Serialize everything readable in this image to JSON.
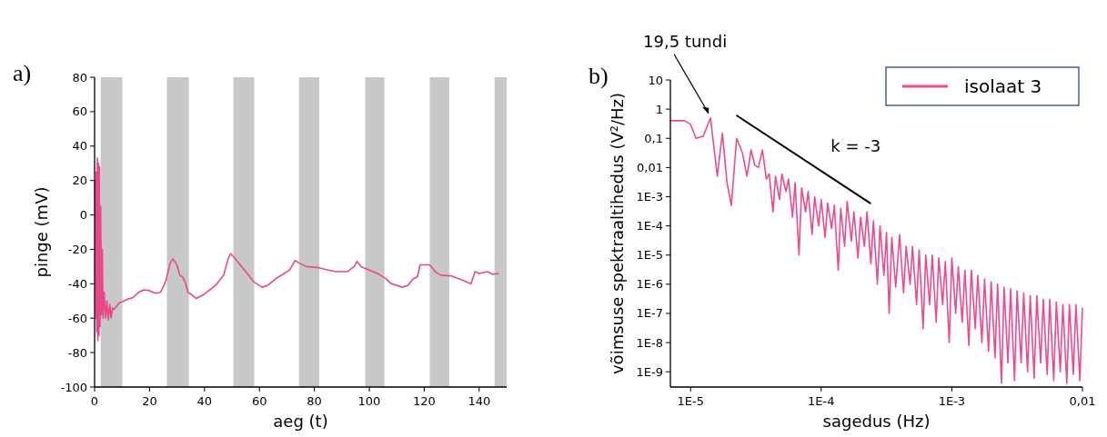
{
  "chart_data": [
    {
      "type": "line",
      "title": "a)",
      "xlabel": "aeg (t)",
      "ylabel": "pinge (mV)",
      "xlim": [
        0,
        150
      ],
      "ylim": [
        -100,
        80
      ],
      "xticks": [
        0,
        20,
        40,
        60,
        80,
        100,
        120,
        140
      ],
      "yticks": [
        -100,
        -80,
        -60,
        -40,
        -20,
        0,
        20,
        40,
        60,
        80
      ],
      "grid": false,
      "legend": false,
      "bands": [
        {
          "axis": "x",
          "from": 2.2,
          "to": 10.1,
          "color": "#c8c8c8"
        },
        {
          "axis": "x",
          "from": 26.3,
          "to": 34.3,
          "color": "#c8c8c8"
        },
        {
          "axis": "x",
          "from": 50.5,
          "to": 58.1,
          "color": "#c8c8c8"
        },
        {
          "axis": "x",
          "from": 74.4,
          "to": 81.8,
          "color": "#c8c8c8"
        },
        {
          "axis": "x",
          "from": 98.5,
          "to": 105.5,
          "color": "#c8c8c8"
        },
        {
          "axis": "x",
          "from": 122,
          "to": 129.1,
          "color": "#c8c8c8"
        },
        {
          "axis": "x",
          "from": 145.6,
          "to": 150,
          "color": "#c8c8c8"
        }
      ],
      "series": [
        {
          "color": "#e8488a",
          "x": [
            0.2,
            0.4,
            0.6,
            0.8,
            1.0,
            1.2,
            1.4,
            1.6,
            1.8,
            2.0,
            2.2,
            2.5,
            2.8,
            3.1,
            3.5,
            4,
            4.5,
            5,
            5.5,
            6,
            6.5,
            7,
            8,
            9,
            10,
            12,
            14,
            16,
            18,
            20,
            22,
            24,
            26,
            27.5,
            28.5,
            30,
            31,
            32,
            33,
            34,
            35,
            37,
            40,
            44,
            47,
            48.5,
            49.5,
            51,
            53,
            56,
            58,
            61,
            63,
            66,
            69,
            71,
            73,
            74.5,
            77,
            81,
            85,
            88,
            92,
            94.5,
            95.5,
            97,
            100,
            103,
            106,
            108,
            112,
            114,
            116,
            117.5,
            118.5,
            120,
            122,
            124,
            126,
            130,
            134,
            137,
            138.5,
            140,
            143,
            145,
            147
          ],
          "values": [
            20,
            -60,
            25,
            -68,
            33,
            -73,
            30,
            -70,
            28,
            -65,
            5,
            -58,
            -20,
            -60,
            -45,
            -60,
            -50,
            -61,
            -52,
            -60,
            -54,
            -55,
            -53,
            -51,
            -50.5,
            -49,
            -48,
            -45,
            -43.5,
            -44,
            -45.5,
            -45,
            -38,
            -28,
            -25.5,
            -29,
            -35,
            -36,
            -39,
            -45,
            -46,
            -48.5,
            -46,
            -41,
            -35,
            -26,
            -22.5,
            -25,
            -29,
            -35,
            -39,
            -42,
            -41,
            -37,
            -34,
            -32,
            -26.5,
            -28,
            -30,
            -30.5,
            -32,
            -33,
            -33,
            -30,
            -27,
            -30,
            -32,
            -34,
            -37,
            -40,
            -42,
            -41,
            -37,
            -36,
            -29,
            -29,
            -29,
            -33,
            -35,
            -35.5,
            -38,
            -40,
            -33,
            -34,
            -33,
            -34.5,
            -34
          ]
        }
      ]
    },
    {
      "type": "line",
      "title": "b)",
      "xlabel": "sagedus (Hz)",
      "ylabel": "võimsuse spektraaltihedus (V²/Hz)",
      "log": "xy",
      "xlim": [
        7e-06,
        0.01
      ],
      "ylim": [
        3e-10,
        10
      ],
      "grid": false,
      "legend": "top right",
      "xticks": [
        {
          "value": 1e-05,
          "label": "1E-5"
        },
        {
          "value": 0.0001,
          "label": "1E-4"
        },
        {
          "value": 0.001,
          "label": "1E-3"
        },
        {
          "value": 0.01,
          "label": "0,01"
        }
      ],
      "yticks": [
        {
          "value": 1e-09,
          "label": "1E-9"
        },
        {
          "value": 1e-08,
          "label": "1E-8"
        },
        {
          "value": 1e-07,
          "label": "1E-7"
        },
        {
          "value": 1e-06,
          "label": "1E-6"
        },
        {
          "value": 1e-05,
          "label": "1E-5"
        },
        {
          "value": 0.0001,
          "label": "1E-4"
        },
        {
          "value": 0.001,
          "label": "1E-3"
        },
        {
          "value": 0.01,
          "label": "0,01"
        },
        {
          "value": 0.1,
          "label": "0,1"
        },
        {
          "value": 1,
          "label": "1"
        },
        {
          "value": 10,
          "label": "10"
        }
      ],
      "annotations": [
        {
          "text": "19,5 tundi",
          "x": 1.42e-05,
          "y": 0.5
        },
        "k = -3"
      ],
      "series": [
        {
          "name": "isolaat 3",
          "color": "#ee4a8c",
          "x": [
            7e-06,
            9e-06,
            1e-05,
            1.1e-05,
            1.25e-05,
            1.42e-05,
            1.6e-05,
            1.75e-05,
            1.9e-05,
            2.05e-05,
            2.25e-05,
            2.5e-05,
            2.7e-05,
            2.9e-05,
            3.1e-05,
            3.3e-05,
            3.55e-05,
            3.8e-05,
            4e-05,
            4.27e-05,
            4.47e-05,
            4.79e-05,
            5e-05,
            5.37e-05,
            5.62e-05,
            6.03e-05,
            6.31e-05,
            6.76e-05,
            7.08e-05,
            7.59e-05,
            7.94e-05,
            8.51e-05,
            8.91e-05,
            9.55e-05,
            0.0001,
            0.000107,
            0.000112,
            0.00012,
            0.000126,
            0.000135,
            0.000141,
            0.000151,
            0.000158,
            0.00017,
            0.000178,
            0.000191,
            0.0002,
            0.000214,
            0.000224,
            0.00024,
            0.000251,
            0.000269,
            0.000282,
            0.000302,
            0.000316,
            0.000331,
            0.000347,
            0.000372,
            0.000398,
            0.000427,
            0.000447,
            0.000479,
            0.0005,
            0.000537,
            0.000562,
            0.000603,
            0.000631,
            0.000676,
            0.000708,
            0.000759,
            0.000794,
            0.000851,
            0.000891,
            0.000955,
            0.001,
            0.00107,
            0.00112,
            0.0012,
            0.00126,
            0.00135,
            0.00141,
            0.00151,
            0.00158,
            0.0017,
            0.00178,
            0.00191,
            0.002,
            0.00214,
            0.00224,
            0.0024,
            0.00251,
            0.00269,
            0.00282,
            0.00302,
            0.00316,
            0.00339,
            0.00355,
            0.0038,
            0.00398,
            0.00427,
            0.00447,
            0.00479,
            0.00501,
            0.00537,
            0.00562,
            0.00603,
            0.00631,
            0.00676,
            0.00708,
            0.00759,
            0.00794,
            0.00851,
            0.00891,
            0.00955,
            0.01
          ],
          "values": [
            0.4,
            0.4,
            0.3,
            0.1,
            0.12,
            0.5,
            0.005,
            0.15,
            0.003,
            0.0005,
            0.1,
            0.03,
            0.005,
            0.04,
            0.012,
            0.01,
            0.04,
            0.004,
            0.006,
            0.0003,
            0.005,
            0.0008,
            0.006,
            0.0015,
            0.004,
            0.0002,
            0.003,
            1e-05,
            0.002,
            0.0003,
            0.0015,
            5e-05,
            0.001,
            0.0001,
            0.0008,
            4e-05,
            0.0006,
            8e-05,
            0.0005,
            3e-06,
            0.0004,
            2e-05,
            0.0007,
            3e-05,
            0.0003,
            8e-06,
            0.0002,
            2e-05,
            0.0003,
            5e-06,
            0.00015,
            1e-06,
            0.0001,
            2e-06,
            6e-05,
            1e-07,
            4e-05,
            8e-07,
            5e-05,
            5e-07,
            2e-05,
            1e-06,
            2e-05,
            2e-07,
            1.5e-05,
            3e-08,
            1e-05,
            2e-07,
            1e-05,
            5e-08,
            8e-06,
            2e-07,
            6e-06,
            1e-08,
            8e-06,
            1e-07,
            4e-06,
            5e-08,
            3e-06,
            8e-09,
            3e-06,
            3e-08,
            2e-06,
            1e-08,
            1.5e-06,
            5e-09,
            1.2e-06,
            3e-09,
            1e-06,
            4e-10,
            8e-07,
            2e-09,
            7e-07,
            5e-10,
            6e-07,
            2e-09,
            5e-07,
            1e-09,
            4e-07,
            6e-10,
            4e-07,
            2e-09,
            3e-07,
            8e-10,
            3e-07,
            5e-10,
            2.5e-07,
            1e-09,
            2e-07,
            4e-10,
            2e-07,
            8e-10,
            2e-07,
            5e-10,
            1.5e-07
          ]
        },
        {
          "color": "#000000",
          "x": [
            2.26e-05,
            0.000237
          ],
          "values": [
            0.6,
            0.0006
          ]
        }
      ]
    }
  ]
}
